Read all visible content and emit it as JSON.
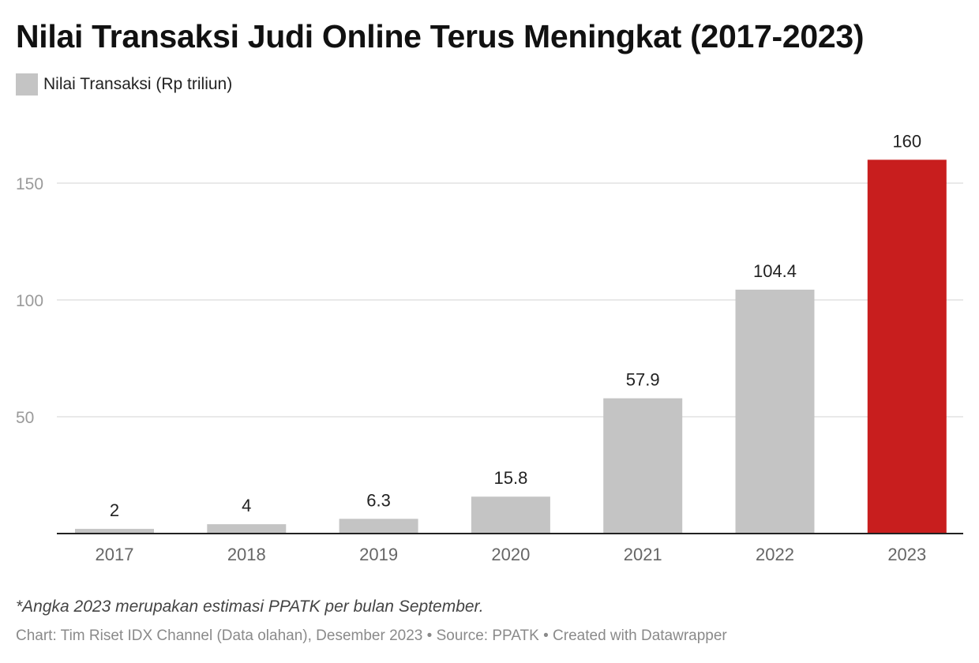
{
  "chart_data": {
    "type": "bar",
    "title": "Nilai Transaksi Judi Online Terus Meningkat (2017-2023)",
    "legend": {
      "label": "Nilai Transaksi (Rp triliun)",
      "color": "#c4c4c4"
    },
    "categories": [
      "2017",
      "2018",
      "2019",
      "2020",
      "2021",
      "2022",
      "2023"
    ],
    "values": [
      2,
      4,
      6.3,
      15.8,
      57.9,
      104.4,
      160
    ],
    "value_labels": [
      "2",
      "4",
      "6.3",
      "15.8",
      "57.9",
      "104.4",
      "160"
    ],
    "colors": [
      "#c4c4c4",
      "#c4c4c4",
      "#c4c4c4",
      "#c4c4c4",
      "#c4c4c4",
      "#c4c4c4",
      "#c81e1e"
    ],
    "yticks": [
      50,
      100,
      150
    ],
    "ylim": [
      0,
      160
    ],
    "grid": true
  },
  "footnote": "*Angka 2023 merupakan estimasi PPATK per bulan September.",
  "credit": {
    "chart": "Chart: Tim Riset IDX Channel (Data olahan), Desember 2023",
    "separator": " • ",
    "source": "Source: PPATK",
    "created": "Created with Datawrapper"
  }
}
